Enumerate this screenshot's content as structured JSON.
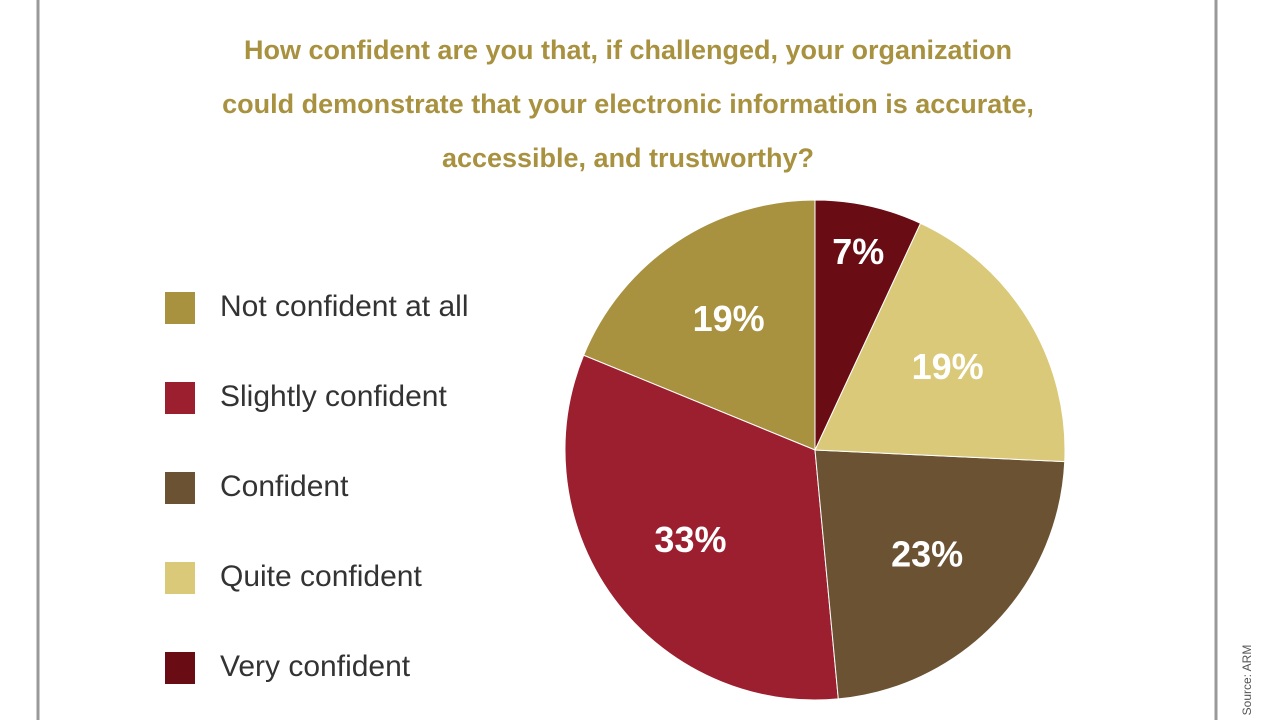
{
  "chart_data": {
    "type": "pie",
    "title": [
      "How confident are you that, if challenged, your organization",
      "could demonstrate that your electronic information is accurate,",
      "accessible, and trustworthy?"
    ],
    "categories": [
      "Not confident at all",
      "Slightly confident",
      "Confident",
      "Quite confident",
      "Very confident"
    ],
    "values": [
      19,
      33,
      23,
      19,
      7
    ],
    "value_labels": [
      "19%",
      "33%",
      "23%",
      "19%",
      "7%"
    ],
    "colors": [
      "#a8913f",
      "#9b1f2e",
      "#6b5233",
      "#d9c978",
      "#6a0c14"
    ],
    "source": "Source: ARM"
  }
}
